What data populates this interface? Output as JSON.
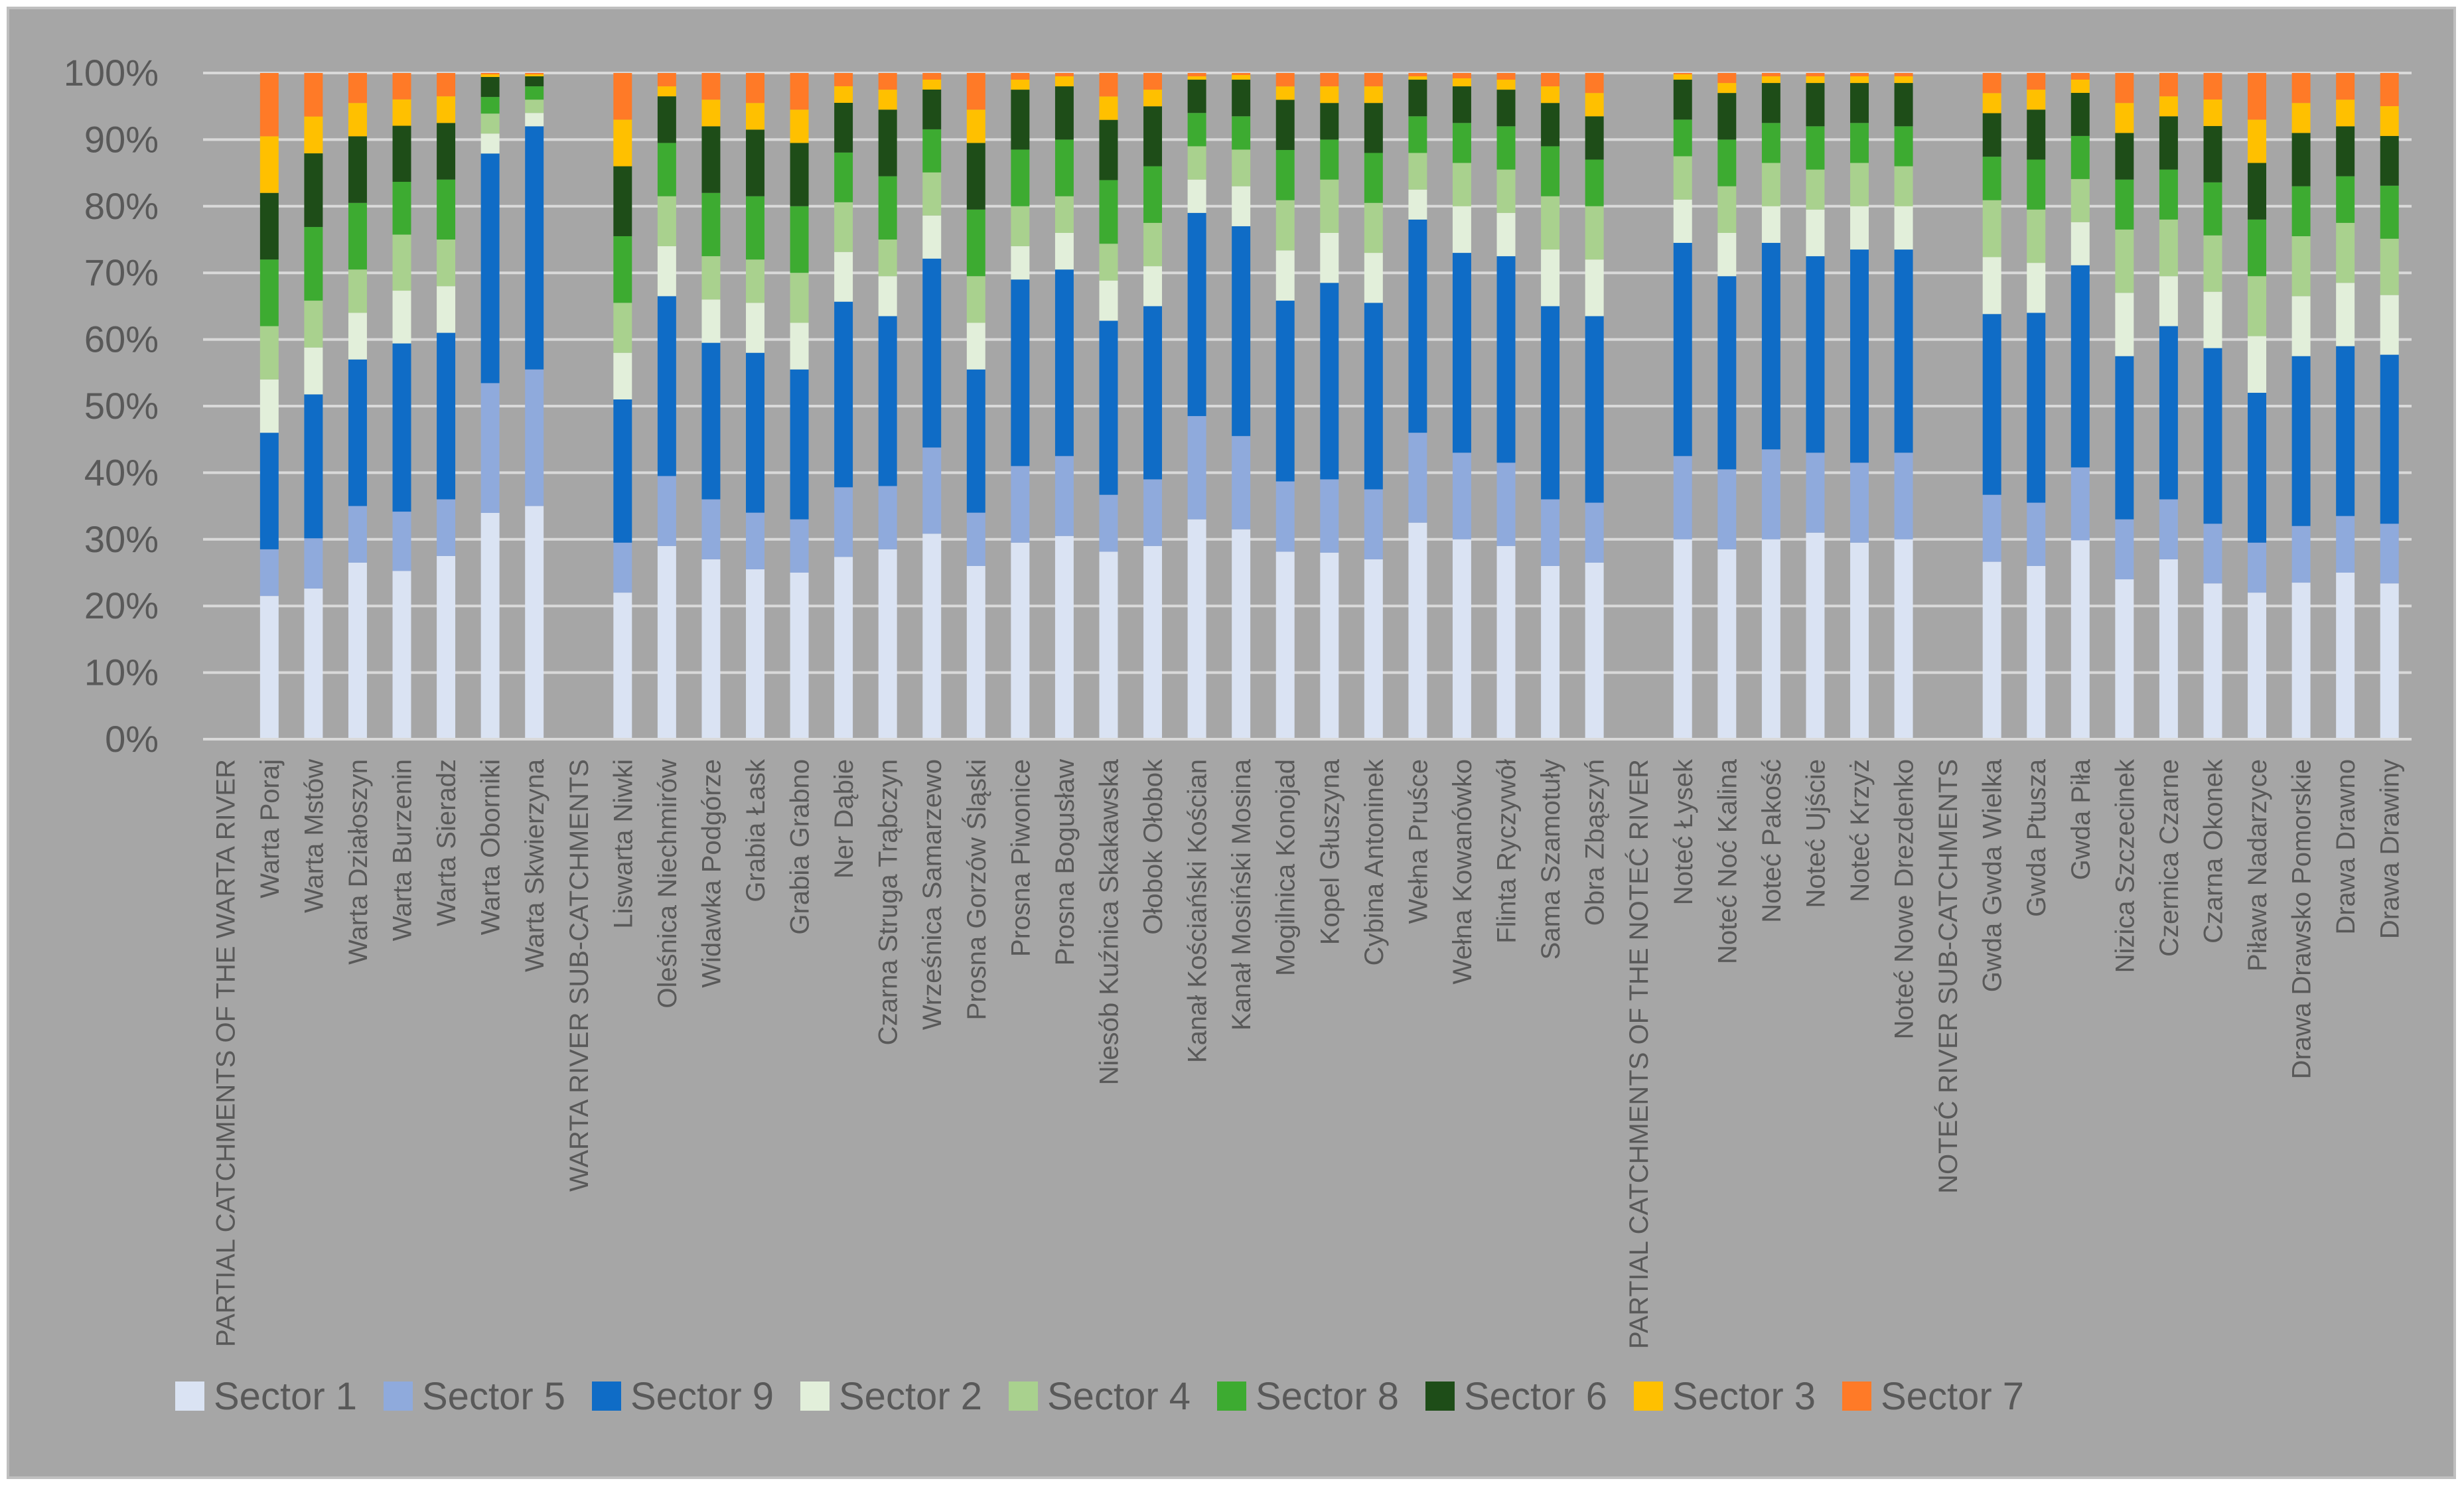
{
  "chart_data": {
    "type": "bar",
    "stacked": true,
    "percent_stacked": true,
    "title": "",
    "xlabel": "",
    "ylabel": "",
    "ylim": [
      0,
      100
    ],
    "y_ticks": [
      "0%",
      "10%",
      "20%",
      "30%",
      "40%",
      "50%",
      "60%",
      "70%",
      "80%",
      "90%",
      "100%"
    ],
    "grid": true,
    "legend_position": "bottom",
    "categories": [
      "PARTIAL CATCHMENTS OF THE WARTA RIVER",
      "Warta Poraj",
      "Warta Mstów",
      "Warta Działoszyn",
      "Warta Burzenin",
      "Warta Sieradz",
      "Warta Oborniki",
      "Warta Skwierzyna",
      "WARTA RIVER SUB-CATCHMENTS",
      "Liswarta Niwki",
      "Oleśnica Niechmirów",
      "Widawka Podgórze",
      "Grabia Łask",
      "Grabia Grabno",
      "Ner Dąbie",
      "Czarna Struga Trąbczyn",
      "Wrześnica Samarzewo",
      "Prosna Gorzów Śląski",
      "Prosna Piwonice",
      "Prosna Bogusław",
      "Niesób Kuźnica Skakawska",
      "Ołobok Ołobok",
      "Kanał Kościański Kościan",
      "Kanał Mosiński Mosina",
      "Mogilnica Konojad",
      "Kopel Głuszyna",
      "Cybina Antoninek",
      "Wełna Pruśce",
      "Wełna Kowanówko",
      "Flinta Ryczywół",
      "Sama Szamotuły",
      "Obra Zbąszyń",
      "PARTIAL CATCHMENTS OF THE NOTEĆ RIVER",
      "Noteć Łysek",
      "Noteć Noć Kalina",
      "Noteć Pakość",
      "Noteć Ujście",
      "Noteć Krzyż",
      "Noteć Nowe Drezdenko",
      "NOTEĆ RIVER SUB-CATCHMENTS",
      "Gwda Gwda Wielka",
      "Gwda Ptusza",
      "Gwda Piła",
      "Nizica Szczecinek",
      "Czernica Czarne",
      "Czarna Okonek",
      "Piława Nadarzyce",
      "Drawa Drawsko Pomorskie",
      "Drawa Drawno",
      "Drawa Drawiny"
    ],
    "series": [
      {
        "name": "Sector 1",
        "color": "#dae3f3",
        "values": [
          0,
          21.5,
          22.5,
          26.5,
          25.5,
          27.5,
          34,
          35,
          0,
          22,
          29,
          27,
          25.5,
          25,
          27.5,
          28.5,
          31,
          26,
          29.5,
          30.5,
          28,
          29,
          33,
          31.5,
          28,
          28,
          27,
          32.5,
          30,
          29,
          26,
          26.5,
          0,
          30,
          28.5,
          30,
          31,
          29.5,
          30,
          0,
          26.5,
          26,
          30,
          24,
          27,
          23.5,
          22,
          23.5,
          25,
          23.5
        ]
      },
      {
        "name": "Sector 5",
        "color": "#8faadc",
        "values": [
          0,
          7,
          7.5,
          8.5,
          9,
          8.5,
          19.5,
          20.5,
          0,
          7.5,
          10.5,
          9,
          8.5,
          8,
          10.5,
          9.5,
          13,
          8,
          11.5,
          12,
          8.5,
          10,
          15.5,
          14,
          10.5,
          11,
          10.5,
          13.5,
          13,
          12.5,
          10,
          9,
          0,
          12.5,
          12,
          13.5,
          12,
          12,
          13,
          0,
          10,
          9.5,
          11,
          9,
          9,
          9,
          7.5,
          8.5,
          8.5,
          9
        ]
      },
      {
        "name": "Sector 9",
        "color": "#0f6cc6",
        "values": [
          0,
          17.5,
          21.5,
          22,
          25.5,
          25,
          34.5,
          36.5,
          0,
          21.5,
          27,
          23.5,
          24,
          22.5,
          28,
          25.5,
          28.5,
          21.5,
          28,
          28,
          26,
          26,
          30.5,
          31.5,
          27,
          29.5,
          28,
          32,
          30,
          31,
          29,
          28,
          0,
          32,
          29,
          31,
          29.5,
          32,
          30.5,
          0,
          27,
          28.5,
          30.5,
          24.5,
          26,
          26.5,
          22.5,
          25.5,
          25.5,
          25.5
        ]
      },
      {
        "name": "Sector 2",
        "color": "#e2efda",
        "values": [
          0,
          8,
          7,
          7,
          8,
          7,
          3,
          2,
          0,
          7,
          7.5,
          6.5,
          7.5,
          7,
          7.5,
          6,
          6.5,
          7,
          5,
          5.5,
          6,
          6,
          5,
          6,
          7.5,
          7.5,
          7.5,
          4.5,
          7,
          6.5,
          8.5,
          8.5,
          0,
          6.5,
          6.5,
          5.5,
          7,
          6.5,
          6.5,
          0,
          8.5,
          7.5,
          6.5,
          9.5,
          7.5,
          8.5,
          8.5,
          9,
          9.5,
          9
        ]
      },
      {
        "name": "Sector 4",
        "color": "#a9d18e",
        "values": [
          0,
          8,
          7,
          6.5,
          8.5,
          7,
          3,
          2,
          0,
          7.5,
          7.5,
          6.5,
          6.5,
          7.5,
          7.5,
          5.5,
          6.5,
          7,
          6,
          5.5,
          5.5,
          6.5,
          5,
          5.5,
          7.5,
          8,
          7.5,
          5.5,
          6.5,
          6.5,
          8,
          8,
          0,
          6.5,
          7,
          6.5,
          6,
          6.5,
          6,
          0,
          8.5,
          8,
          6.5,
          9.5,
          8.5,
          8.5,
          9,
          9,
          9,
          8.5
        ]
      },
      {
        "name": "Sector 8",
        "color": "#3dab31",
        "values": [
          0,
          10,
          11,
          10,
          8,
          9,
          2.5,
          2,
          0,
          10,
          8,
          9.5,
          9.5,
          10,
          7.5,
          9.5,
          6.5,
          10,
          8.5,
          8.5,
          9.5,
          8.5,
          5,
          5,
          7.5,
          6,
          7.5,
          5.5,
          6,
          6.5,
          7.5,
          7,
          0,
          5.5,
          7,
          6,
          6.5,
          6,
          6,
          0,
          6.5,
          7.5,
          6.5,
          7.5,
          7.5,
          8,
          8.5,
          7.5,
          7,
          8
        ]
      },
      {
        "name": "Sector 6",
        "color": "#1e4d18",
        "values": [
          0,
          10,
          11,
          10,
          8.5,
          8.5,
          3,
          1.5,
          0,
          10.5,
          7,
          10,
          10,
          9.5,
          7.5,
          10,
          6,
          10,
          9,
          8,
          9,
          9,
          5,
          5.5,
          7.5,
          5.5,
          7.5,
          5.5,
          5.5,
          5.5,
          6.5,
          6.5,
          0,
          6,
          7,
          6,
          6.5,
          6,
          6.5,
          0,
          6.5,
          7.5,
          6.5,
          7,
          8,
          8.5,
          8.5,
          8,
          7.5,
          7.5
        ]
      },
      {
        "name": "Sector 3",
        "color": "#ffc000",
        "values": [
          0,
          8.5,
          5.5,
          5,
          4,
          4,
          0.4,
          0.3,
          0,
          7,
          1.5,
          4,
          4,
          5,
          2.5,
          3,
          1.5,
          5,
          1.5,
          1.5,
          3.5,
          2.5,
          0.5,
          0.7,
          2,
          2.5,
          2.5,
          0.5,
          1.2,
          1.5,
          2.5,
          3.5,
          0,
          0.8,
          1.5,
          1,
          1,
          1,
          1,
          0,
          3,
          3,
          2,
          4.5,
          3,
          4,
          6.5,
          4.5,
          4,
          4.5
        ]
      },
      {
        "name": "Sector 7",
        "color": "#ff7a27",
        "values": [
          0,
          9.5,
          6.5,
          4.5,
          4,
          3.5,
          0.2,
          0.2,
          0,
          7,
          2,
          4,
          4.5,
          5.5,
          2,
          2.5,
          1,
          5.5,
          1,
          0.5,
          3.5,
          2.5,
          0.5,
          0.3,
          2,
          2,
          2,
          0.5,
          0.8,
          1,
          2,
          3,
          0,
          0.2,
          1.5,
          0.5,
          0.5,
          0.5,
          0.5,
          0,
          3,
          2.5,
          1,
          4.5,
          3.5,
          4,
          7,
          4.5,
          4,
          5
        ]
      }
    ]
  }
}
